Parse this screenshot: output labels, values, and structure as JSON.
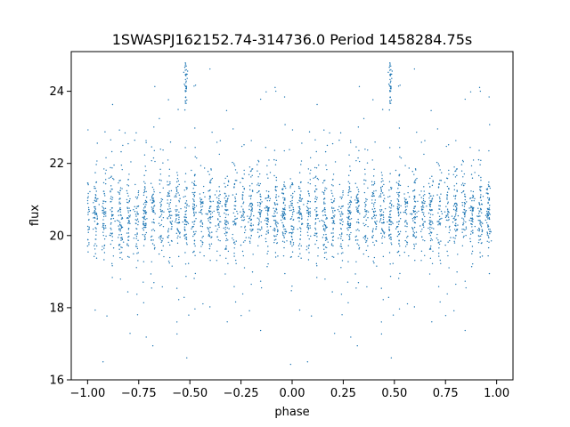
{
  "chart_data": {
    "type": "scatter",
    "title": "1SWASPJ162152.74-314736.0 Period 1458284.75s",
    "xlabel": "phase",
    "ylabel": "flux",
    "xlim": [
      -1.08,
      1.08
    ],
    "ylim": [
      16,
      25.1
    ],
    "xticks": [
      -1.0,
      -0.75,
      -0.5,
      -0.25,
      0.0,
      0.25,
      0.5,
      0.75,
      1.0
    ],
    "xtick_labels": [
      "−1.00",
      "−0.75",
      "−0.50",
      "−0.25",
      "0.00",
      "0.25",
      "0.50",
      "0.75",
      "1.00"
    ],
    "yticks": [
      16,
      18,
      20,
      22,
      24
    ],
    "ytick_labels": [
      "16",
      "18",
      "20",
      "22",
      "24"
    ],
    "grid": false,
    "legend": "none",
    "point_color": "#1f77b4",
    "series": [
      {
        "summary": "Dense phase-folded light curve: several thousand points in narrow vertical columns spanning phase -1.0 to 1.0, flux concentrated around 20-21.5 with scattered points from about 16.4 to 24.8; the folded pattern repeats with a period of 1.0 in phase.",
        "column_centers": [
          0.0,
          0.04,
          0.08,
          0.12,
          0.16,
          0.2,
          0.24,
          0.28,
          0.32,
          0.36,
          0.4,
          0.44,
          0.48,
          0.52,
          0.56,
          0.6,
          0.64,
          0.68,
          0.72,
          0.76,
          0.8,
          0.84,
          0.88,
          0.92,
          0.96
        ],
        "core_flux_range": [
          19.6,
          21.6
        ],
        "outer_flux_range": [
          16.4,
          24.8
        ],
        "high_excursion_phases": [
          -0.52,
          0.48
        ],
        "high_excursion_flux_max": 24.8
      }
    ]
  }
}
